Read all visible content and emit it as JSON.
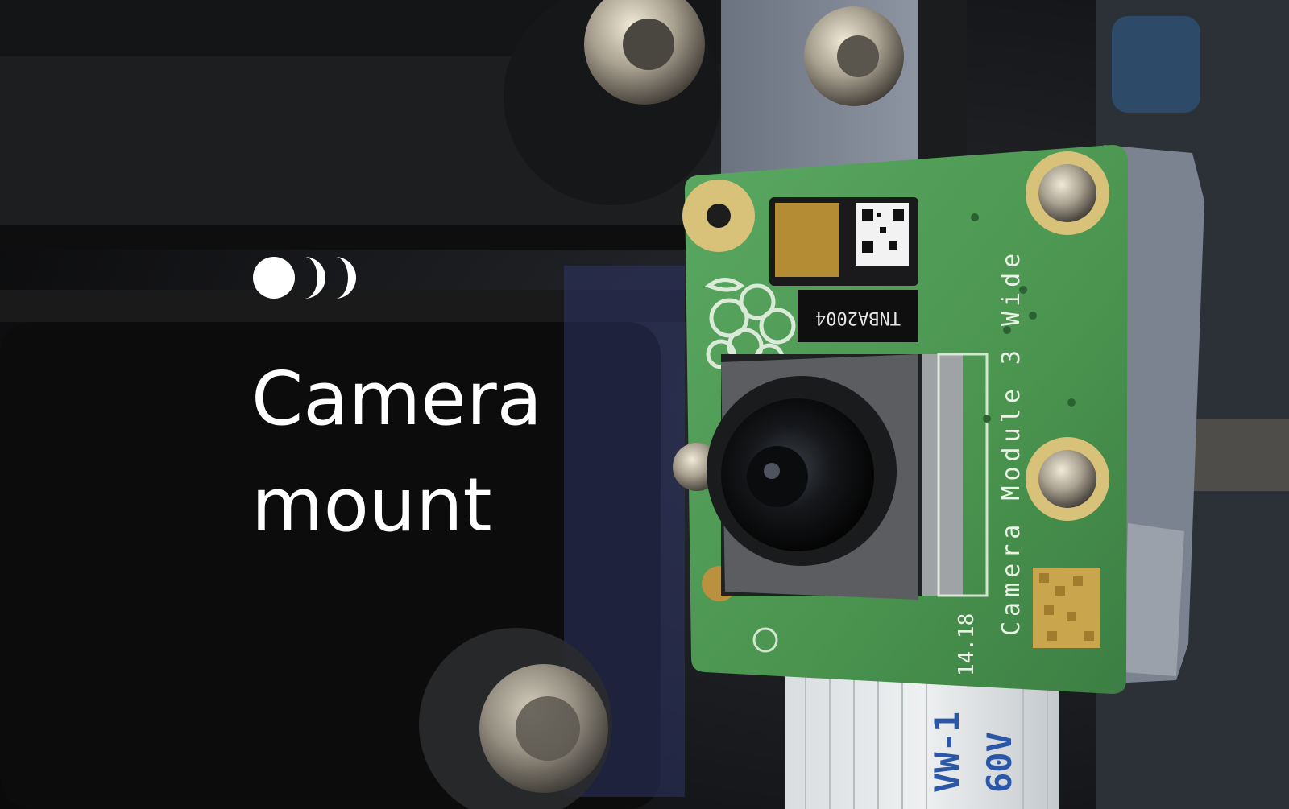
{
  "overlay": {
    "logo_icon": "concentric-arcs-logo-icon",
    "title_line1": "Camera",
    "title_line2": "mount"
  },
  "photo": {
    "board_text_model": "Camera Module 3 Wide",
    "board_text_serial": "TNBA2004",
    "board_text_rev": "14.18",
    "cable_text_1": "VW-1",
    "cable_text_2": "60V"
  },
  "colors": {
    "background": "#0b0b0c",
    "pcb_green": "#4f9e56",
    "title_text": "#ffffff"
  }
}
